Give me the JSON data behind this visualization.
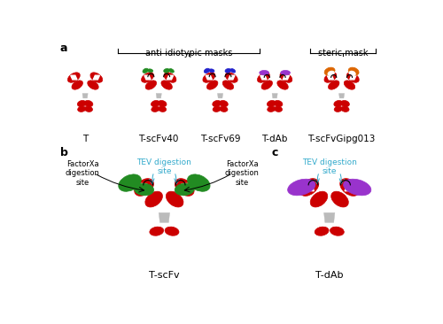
{
  "bg_color": "#ffffff",
  "red": "#CC0000",
  "dark_red": "#990000",
  "green": "#228B22",
  "blue": "#2222CC",
  "purple": "#9933CC",
  "orange": "#DD6600",
  "cyan": "#33AACC",
  "black": "#000000",
  "gray": "#BBBBBB",
  "panel_a_label": "a",
  "panel_b_label": "b",
  "panel_c_label": "c",
  "labels_top": [
    "T",
    "T-scFv40",
    "T-scFv69",
    "T-dAb",
    "T-scFvGipg013"
  ],
  "label_anti_idiotypic": "anti-idiotypic masks",
  "label_steric": "steric mask",
  "label_tscfv": "T-scFv",
  "label_tdab": "T-dAb",
  "label_factorxa1": "FactorXa\ndigestion\nsite",
  "label_factorxa2": "FactorXa\ndigestion\nsite",
  "label_tev_b": "TEV digestion\nsite",
  "label_tev_c": "TEV digestion\nsite"
}
